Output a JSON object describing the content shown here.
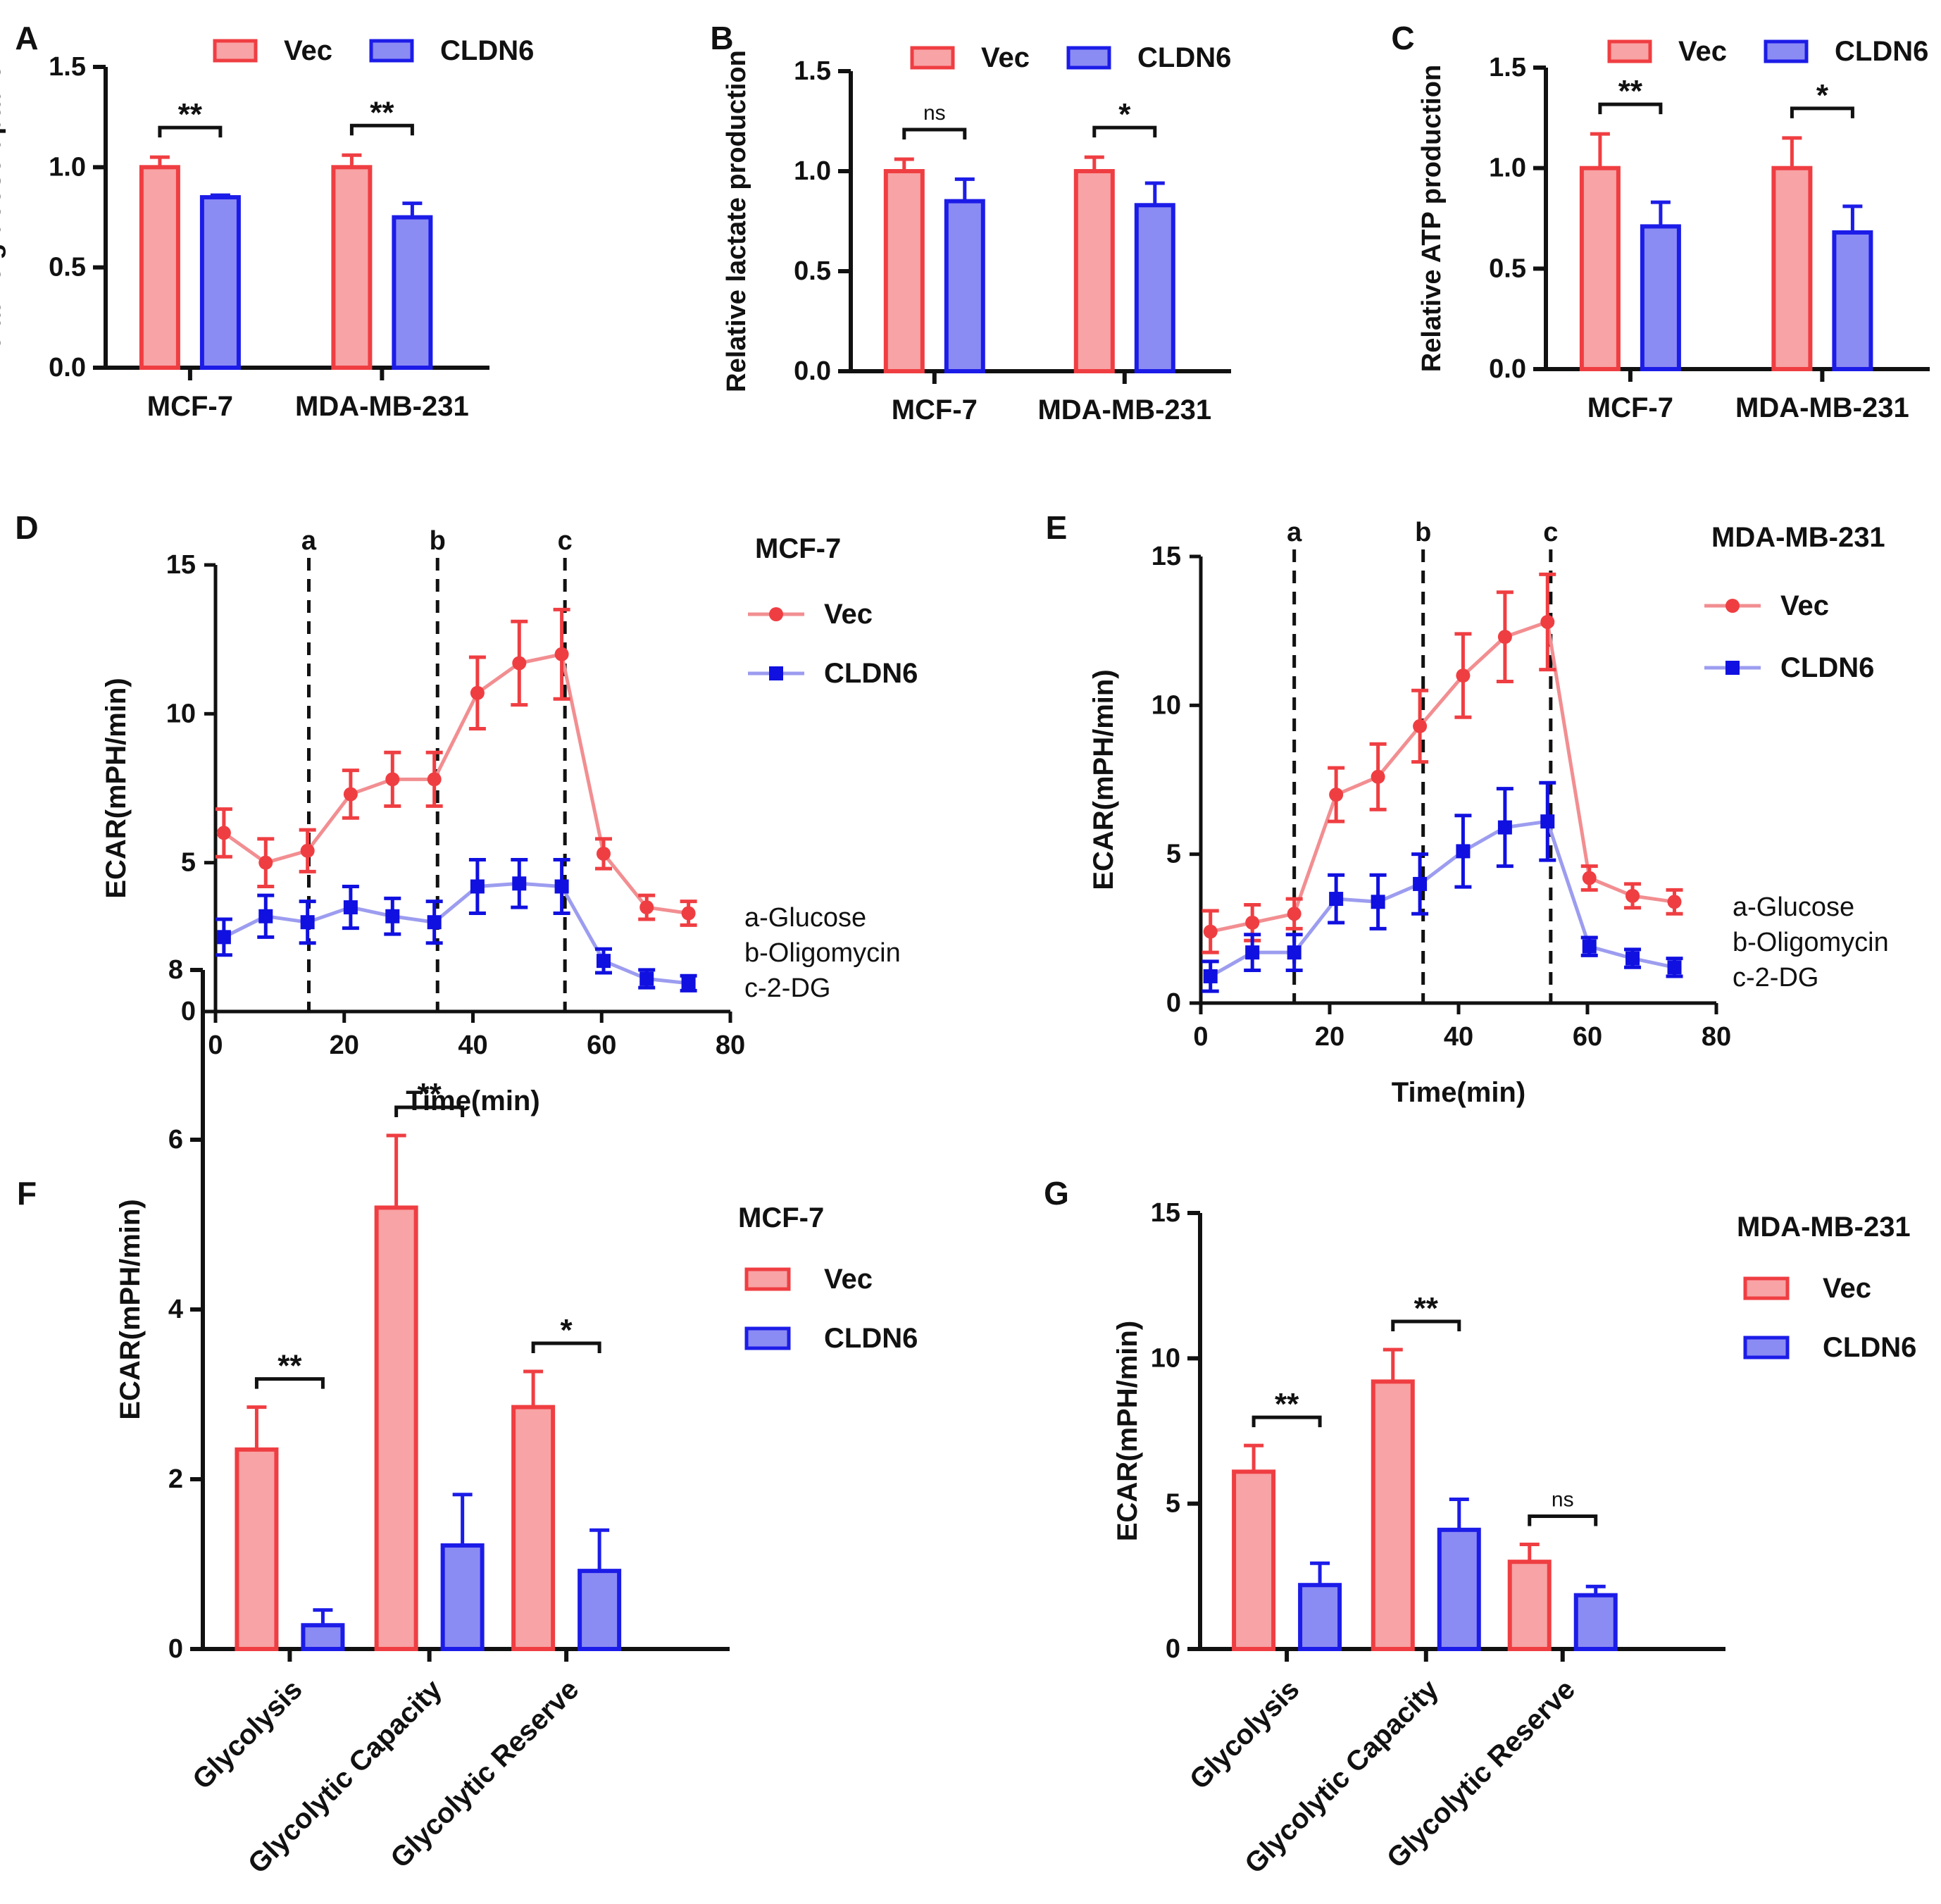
{
  "colors": {
    "vec_stroke": "#ef3e42",
    "vec_fill": "#f8a3a5",
    "cldn6_stroke": "#1c1ce8",
    "cldn6_fill": "#8b8bf4",
    "vec_line": "#f28e91",
    "cldn6_line": "#9c9cf0",
    "vec_marker": "#ef3e42",
    "cldn6_marker": "#1010e0",
    "axis": "#111111"
  },
  "chart_data": [
    {
      "id": "A",
      "panel_label": "A",
      "type": "bar",
      "ylabel": "Relative glucose uptake",
      "ylim": [
        0,
        1.5
      ],
      "yticks": [
        "0.0",
        "0.5",
        "1.0",
        "1.5"
      ],
      "categories": [
        "MCF-7",
        "MDA-MB-231"
      ],
      "series": [
        {
          "name": "Vec",
          "values": [
            1.0,
            1.0
          ],
          "errors": [
            0.05,
            0.06
          ]
        },
        {
          "name": "CLDN6",
          "values": [
            0.85,
            0.75
          ],
          "errors": [
            0.01,
            0.07
          ]
        }
      ],
      "significance": [
        "**",
        "**"
      ],
      "legend": [
        "Vec",
        "CLDN6"
      ]
    },
    {
      "id": "B",
      "panel_label": "B",
      "type": "bar",
      "ylabel": "Relative lactate production",
      "ylim": [
        0,
        1.5
      ],
      "yticks": [
        "0.0",
        "0.5",
        "1.0",
        "1.5"
      ],
      "categories": [
        "MCF-7",
        "MDA-MB-231"
      ],
      "series": [
        {
          "name": "Vec",
          "values": [
            1.0,
            1.0
          ],
          "errors": [
            0.06,
            0.07
          ]
        },
        {
          "name": "CLDN6",
          "values": [
            0.85,
            0.83
          ],
          "errors": [
            0.11,
            0.11
          ]
        }
      ],
      "significance": [
        "ns",
        "*"
      ],
      "legend": [
        "Vec",
        "CLDN6"
      ]
    },
    {
      "id": "C",
      "panel_label": "C",
      "type": "bar",
      "ylabel": "Relative ATP production",
      "ylim": [
        0,
        1.5
      ],
      "yticks": [
        "0.0",
        "0.5",
        "1.0",
        "1.5"
      ],
      "categories": [
        "MCF-7",
        "MDA-MB-231"
      ],
      "series": [
        {
          "name": "Vec",
          "values": [
            1.0,
            1.0
          ],
          "errors": [
            0.17,
            0.15
          ]
        },
        {
          "name": "CLDN6",
          "values": [
            0.71,
            0.68
          ],
          "errors": [
            0.12,
            0.13
          ]
        }
      ],
      "significance": [
        "**",
        "*"
      ],
      "legend": [
        "Vec",
        "CLDN6"
      ]
    },
    {
      "id": "D",
      "panel_label": "D",
      "type": "line",
      "title": "MCF-7",
      "xlabel": "Time(min)",
      "ylabel": "ECAR(mPH/min)",
      "xlim": [
        0,
        80
      ],
      "ylim": [
        0,
        15
      ],
      "xticks": [
        "0",
        "20",
        "40",
        "60",
        "80"
      ],
      "yticks": [
        "0",
        "5",
        "10",
        "15"
      ],
      "x": [
        1.3,
        7.8,
        14.3,
        21.0,
        27.5,
        34.0,
        40.7,
        47.2,
        53.8,
        60.3,
        67.0,
        73.5
      ],
      "series": [
        {
          "name": "Vec",
          "values": [
            6.0,
            5.0,
            5.4,
            7.3,
            7.8,
            7.8,
            10.7,
            11.7,
            12.0,
            5.3,
            3.5,
            3.3
          ],
          "errors": [
            0.8,
            0.8,
            0.7,
            0.8,
            0.9,
            0.9,
            1.2,
            1.4,
            1.5,
            0.5,
            0.4,
            0.4
          ]
        },
        {
          "name": "CLDN6",
          "values": [
            2.5,
            3.2,
            3.0,
            3.5,
            3.2,
            3.0,
            4.2,
            4.3,
            4.2,
            1.7,
            1.1,
            0.95
          ],
          "errors": [
            0.6,
            0.7,
            0.7,
            0.7,
            0.6,
            0.7,
            0.9,
            0.8,
            0.9,
            0.4,
            0.3,
            0.25
          ]
        }
      ],
      "vlines": [
        {
          "label": "a",
          "x": 14.5
        },
        {
          "label": "b",
          "x": 34.5
        },
        {
          "label": "c",
          "x": 54.3
        }
      ],
      "legend": [
        "Vec",
        "CLDN6"
      ],
      "annotations": [
        "a-Glucose",
        "b-Oligomycin",
        "c-2-DG"
      ]
    },
    {
      "id": "E",
      "panel_label": "E",
      "type": "line",
      "title": "MDA-MB-231",
      "xlabel": "Time(min)",
      "ylabel": "ECAR(mPH/min)",
      "xlim": [
        0,
        80
      ],
      "ylim": [
        0,
        15
      ],
      "xticks": [
        "0",
        "20",
        "40",
        "60",
        "80"
      ],
      "yticks": [
        "0",
        "5",
        "10",
        "15"
      ],
      "x": [
        1.5,
        8.0,
        14.5,
        21.0,
        27.5,
        34.0,
        40.7,
        47.2,
        53.8,
        60.3,
        67.0,
        73.5
      ],
      "series": [
        {
          "name": "Vec",
          "values": [
            2.4,
            2.7,
            3.0,
            7.0,
            7.6,
            9.3,
            11.0,
            12.3,
            12.8,
            4.2,
            3.6,
            3.4
          ],
          "errors": [
            0.7,
            0.6,
            0.5,
            0.9,
            1.1,
            1.2,
            1.4,
            1.5,
            1.6,
            0.4,
            0.4,
            0.4
          ]
        },
        {
          "name": "CLDN6",
          "values": [
            0.9,
            1.7,
            1.7,
            3.5,
            3.4,
            4.0,
            5.1,
            5.9,
            6.1,
            1.9,
            1.5,
            1.2
          ],
          "errors": [
            0.5,
            0.6,
            0.6,
            0.8,
            0.9,
            1.0,
            1.2,
            1.3,
            1.3,
            0.3,
            0.3,
            0.3
          ]
        }
      ],
      "vlines": [
        {
          "label": "a",
          "x": 14.5
        },
        {
          "label": "b",
          "x": 34.5
        },
        {
          "label": "c",
          "x": 54.3
        }
      ],
      "legend": [
        "Vec",
        "CLDN6"
      ],
      "annotations": [
        "a-Glucose",
        "b-Oligomycin",
        "c-2-DG"
      ]
    },
    {
      "id": "F",
      "panel_label": "F",
      "type": "bar",
      "title": "MCF-7",
      "ylabel": "ECAR(mPH/min)",
      "ylim": [
        0,
        8
      ],
      "yticks": [
        "0",
        "2",
        "4",
        "6",
        "8"
      ],
      "categories": [
        "Glycolysis",
        "Glycolytic Capacity",
        "Glycolytic Reserve"
      ],
      "series": [
        {
          "name": "Vec",
          "values": [
            2.35,
            5.2,
            2.85
          ],
          "errors": [
            0.5,
            0.85,
            0.42
          ]
        },
        {
          "name": "CLDN6",
          "values": [
            0.28,
            1.22,
            0.92
          ],
          "errors": [
            0.18,
            0.6,
            0.48
          ]
        }
      ],
      "significance": [
        "**",
        "**",
        "*"
      ],
      "legend": [
        "Vec",
        "CLDN6"
      ]
    },
    {
      "id": "G",
      "panel_label": "G",
      "type": "bar",
      "title": "MDA-MB-231",
      "ylabel": "ECAR(mPH/min)",
      "ylim": [
        0,
        15
      ],
      "yticks": [
        "0",
        "5",
        "10",
        "15"
      ],
      "categories": [
        "Glycolysis",
        "Glycolytic Capacity",
        "Glycolytic Reserve"
      ],
      "series": [
        {
          "name": "Vec",
          "values": [
            6.1,
            9.2,
            3.0
          ],
          "errors": [
            0.9,
            1.1,
            0.6
          ]
        },
        {
          "name": "CLDN6",
          "values": [
            2.2,
            4.1,
            1.85
          ],
          "errors": [
            0.75,
            1.05,
            0.3
          ]
        }
      ],
      "significance": [
        "**",
        "**",
        "ns"
      ],
      "legend": [
        "Vec",
        "CLDN6"
      ]
    }
  ]
}
